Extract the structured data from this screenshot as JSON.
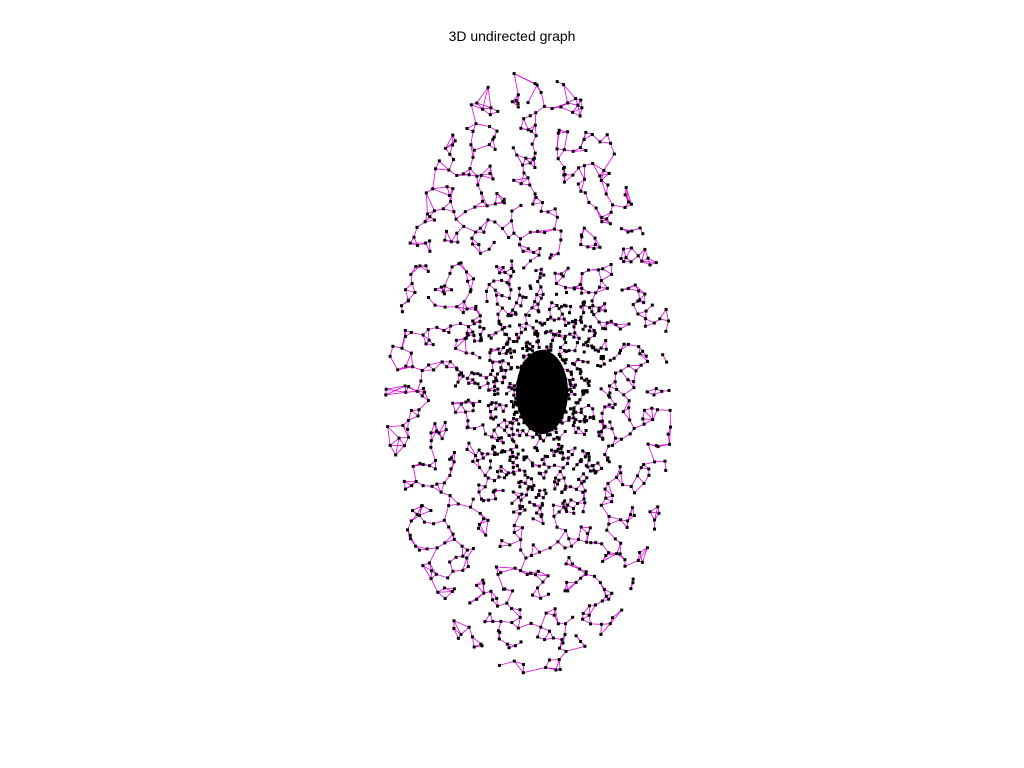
{
  "figure": {
    "title": "3D undirected graph"
  },
  "graph": {
    "type": "undirected",
    "edge_color": "#e000e0",
    "node_color": "#000000"
  }
}
